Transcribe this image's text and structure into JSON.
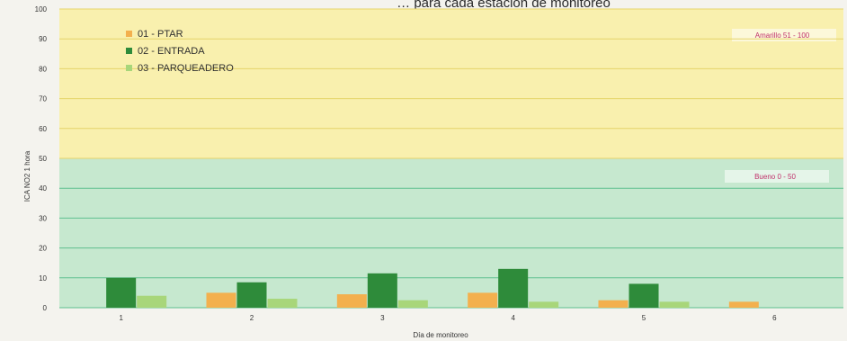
{
  "chart_data": {
    "type": "bar",
    "title": "… para cada estación de monitoreo",
    "xlabel": "Día de monitoreo",
    "ylabel": "ICA NO2 1 hora",
    "categories": [
      "1",
      "2",
      "3",
      "4",
      "5",
      "6"
    ],
    "ylim": [
      0,
      100
    ],
    "yticks": [
      0,
      10,
      20,
      30,
      40,
      50,
      60,
      70,
      80,
      90,
      100
    ],
    "grid": true,
    "legend_position": "top-left",
    "series": [
      {
        "name": "01 - PTAR",
        "color": "#f3b04e",
        "values": [
          null,
          5,
          4.5,
          5,
          2.5,
          2
        ]
      },
      {
        "name": "02 - ENTRADA",
        "color": "#2e8b3a",
        "values": [
          10,
          8.5,
          11.5,
          13,
          8,
          null
        ]
      },
      {
        "name": "03 - PARQUEADERO",
        "color": "#a8d67a",
        "values": [
          4,
          3,
          2.5,
          2,
          2,
          null
        ]
      }
    ],
    "bands": [
      {
        "label": "Amarillo 51 - 100",
        "from": 50,
        "to": 100,
        "color": "#f9f0ae"
      },
      {
        "label": "Bueno 0 - 50",
        "from": 0,
        "to": 50,
        "color": "#c6e8cf"
      }
    ]
  }
}
